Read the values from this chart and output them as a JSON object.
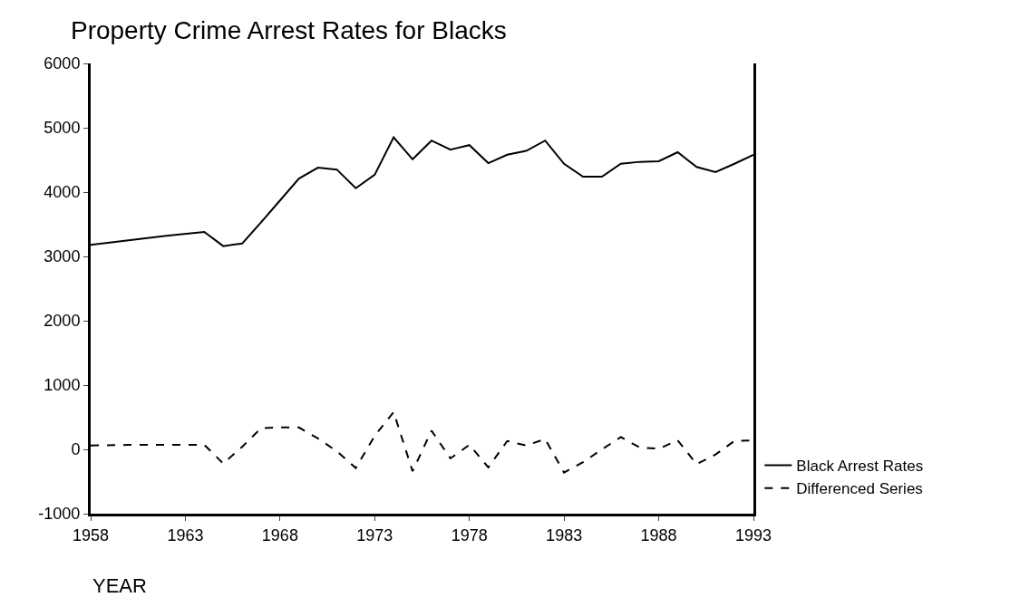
{
  "chart_data": {
    "type": "line",
    "title": "Property Crime Arrest Rates for Blacks",
    "xlabel": "YEAR",
    "xlim": [
      1958,
      1993
    ],
    "xticks": [
      1958,
      1963,
      1968,
      1973,
      1978,
      1983,
      1988,
      1993
    ],
    "ylim": [
      -1000,
      6000
    ],
    "yticks": [
      -1000,
      0,
      1000,
      2000,
      3000,
      4000,
      5000,
      6000
    ],
    "legend": "bottom right",
    "series": [
      {
        "name": "Black Arrest Rates",
        "color": "#000000",
        "line_style": "solid",
        "x": [
          1958,
          1960,
          1962,
          1964,
          1965,
          1966,
          1967,
          1968,
          1969,
          1970,
          1971,
          1972,
          1973,
          1974,
          1975,
          1976,
          1977,
          1978,
          1979,
          1980,
          1981,
          1982,
          1983,
          1984,
          1985,
          1986,
          1987,
          1988,
          1989,
          1990,
          1991,
          1992,
          1993
        ],
        "values": [
          3180,
          3250,
          3320,
          3380,
          3160,
          3200,
          3530,
          3870,
          4210,
          4380,
          4350,
          4060,
          4270,
          4850,
          4510,
          4800,
          4660,
          4730,
          4450,
          4580,
          4640,
          4800,
          4440,
          4240,
          4240,
          4440,
          4470,
          4480,
          4620,
          4390,
          4310,
          4440,
          4580
        ]
      },
      {
        "name": "Differenced Series",
        "color": "#000000",
        "line_style": "dashed",
        "x": [
          1958,
          1960,
          1962,
          1964,
          1965,
          1966,
          1967,
          1968,
          1969,
          1970,
          1971,
          1972,
          1973,
          1974,
          1975,
          1976,
          1977,
          1978,
          1979,
          1980,
          1981,
          1982,
          1983,
          1984,
          1985,
          1986,
          1987,
          1988,
          1989,
          1990,
          1991,
          1992,
          1993
        ],
        "values": [
          60,
          70,
          70,
          70,
          -220,
          40,
          330,
          340,
          340,
          170,
          -30,
          -290,
          210,
          580,
          -340,
          290,
          -140,
          70,
          -280,
          130,
          60,
          160,
          -360,
          -200,
          0,
          190,
          30,
          10,
          140,
          -230,
          -80,
          130,
          140
        ]
      }
    ]
  }
}
